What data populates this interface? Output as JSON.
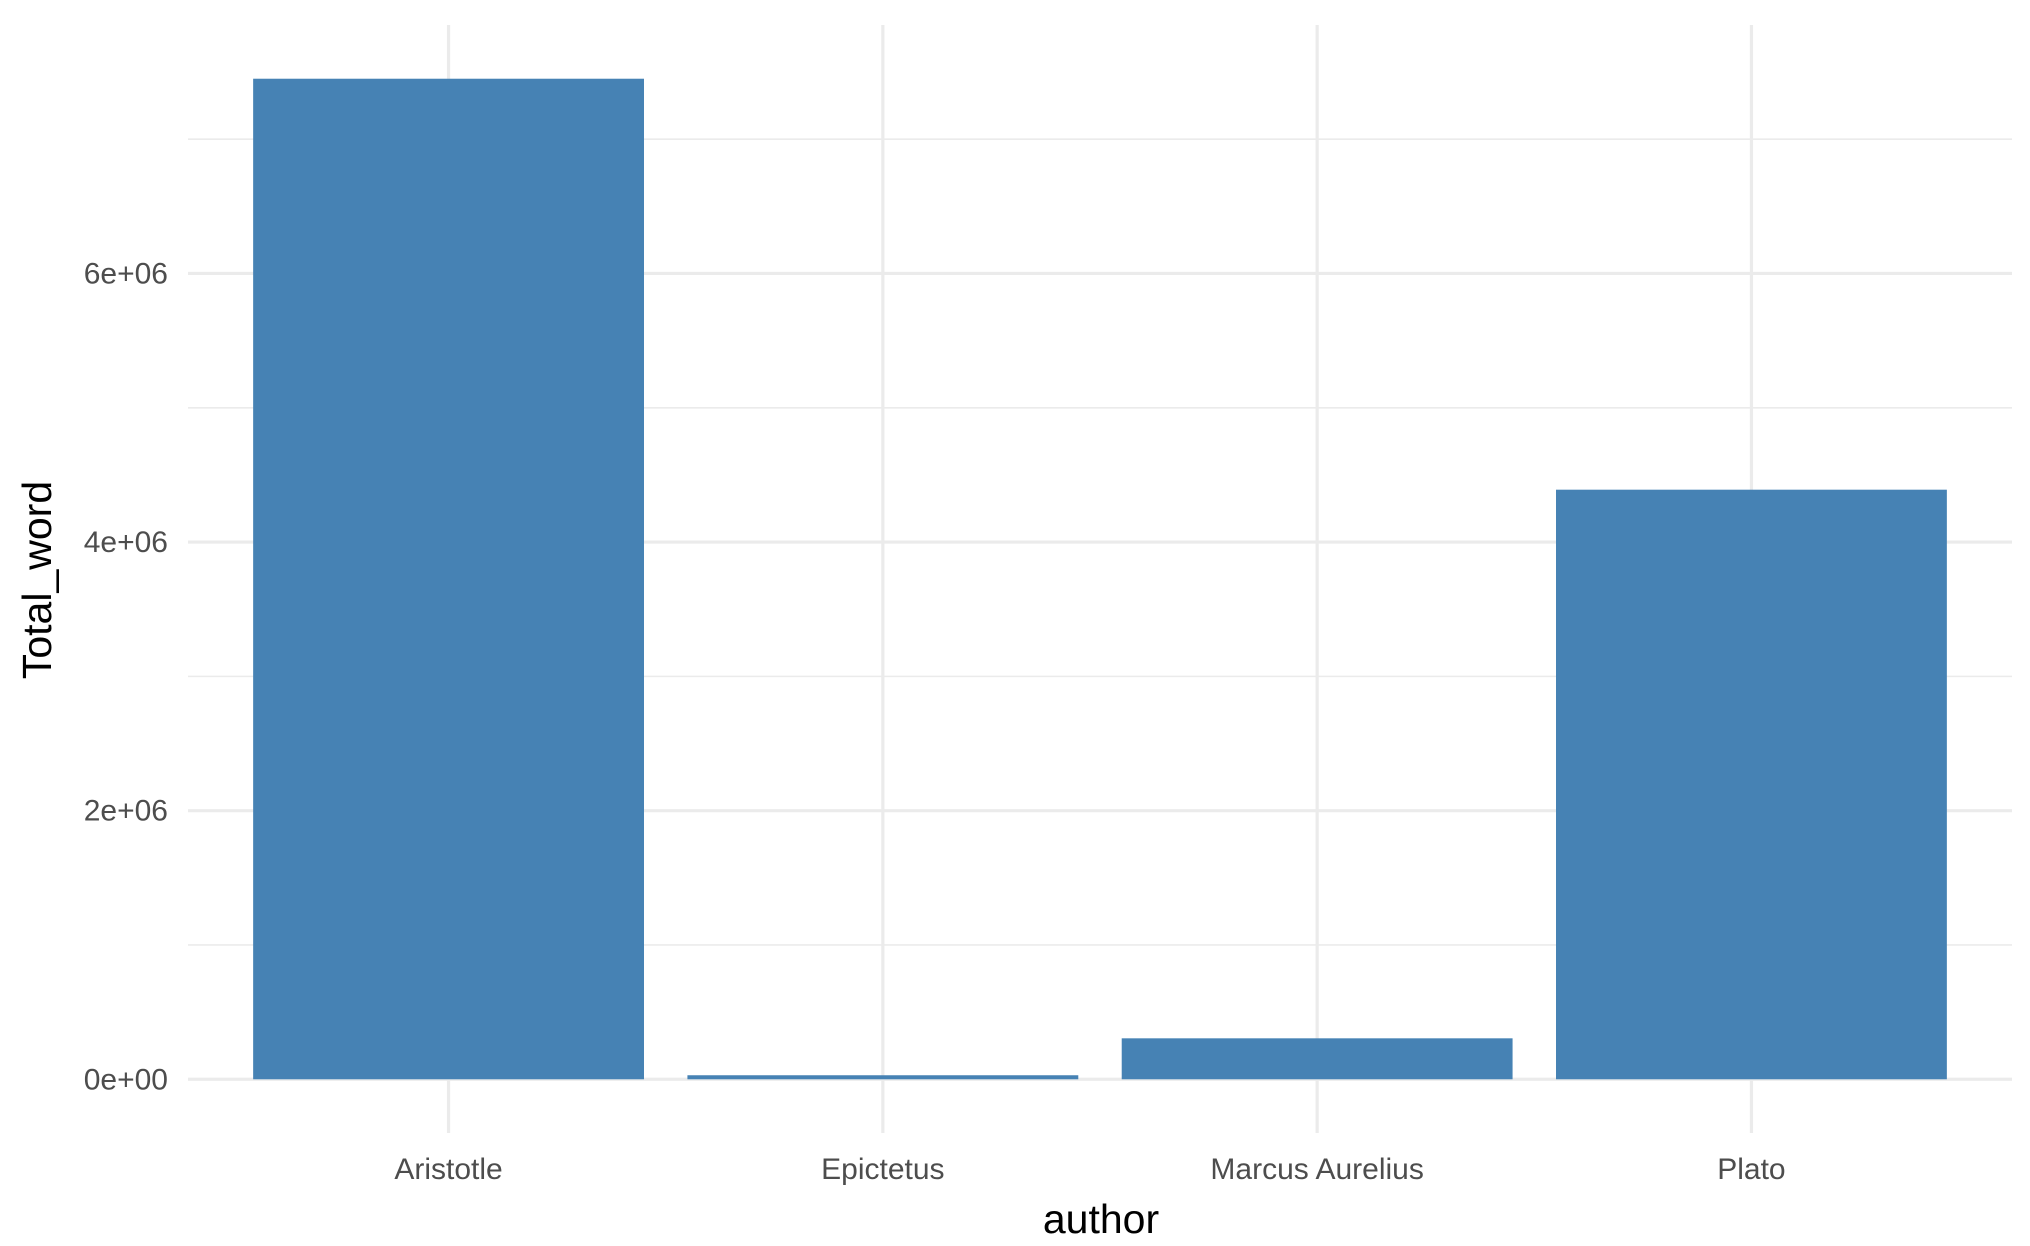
{
  "chart_data": {
    "type": "bar",
    "xlabel": "author",
    "ylabel": "Total_word",
    "categories": [
      "Aristotle",
      "Epictetus",
      "Marcus Aurelius",
      "Plato"
    ],
    "values": [
      7450000,
      30000,
      305000,
      4390000
    ],
    "ylim": [
      -400000,
      7850000
    ],
    "yticks": [
      0,
      2000000,
      4000000,
      6000000
    ],
    "ytick_labels": [
      "0e+00",
      "2e+06",
      "4e+06",
      "6e+06"
    ],
    "grid": true,
    "legend": "none",
    "bar_color": "#4682b4",
    "grid_color": "#ebebeb"
  }
}
